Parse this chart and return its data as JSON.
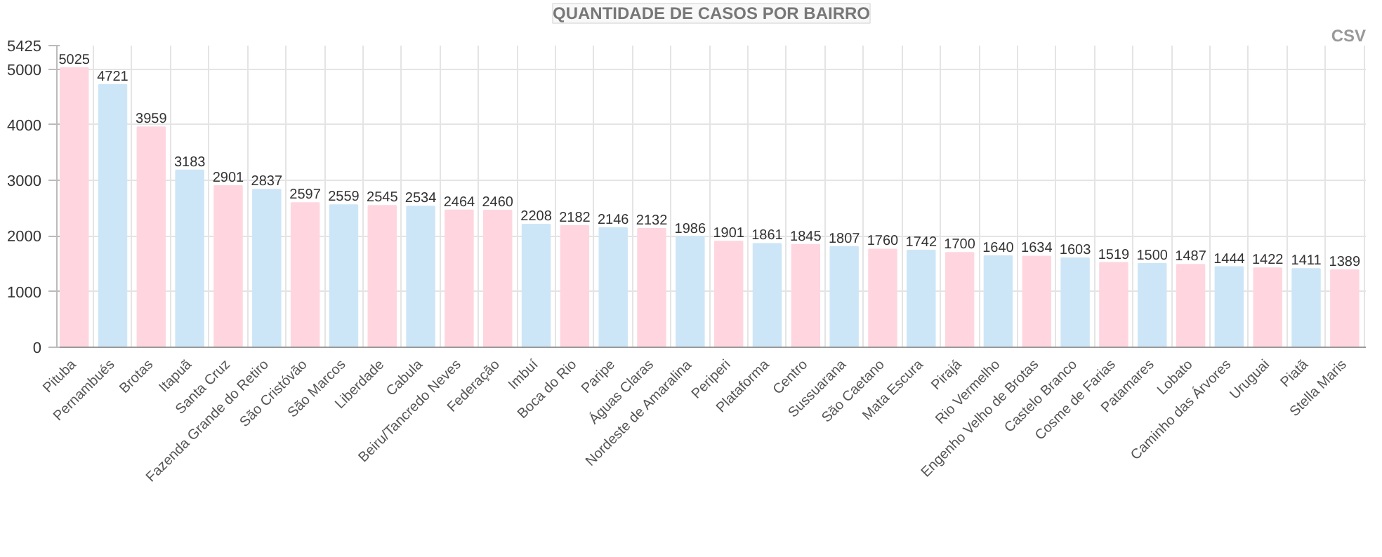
{
  "chart_data": {
    "type": "bar",
    "title": "QUANTIDADE DE CASOS POR BAIRRO",
    "categories": [
      "Pituba",
      "Pernambués",
      "Brotas",
      "Itapuã",
      "Santa Cruz",
      "Fazenda Grande do Retiro",
      "São Cristóvão",
      "São Marcos",
      "Liberdade",
      "Cabula",
      "Beiru/Tancredo Neves",
      "Federação",
      "Imbuí",
      "Boca do Rio",
      "Paripe",
      "Águas Claras",
      "Nordeste de Amaralina",
      "Periperi",
      "Plataforma",
      "Centro",
      "Sussuarana",
      "São Caetano",
      "Mata Escura",
      "Pirajá",
      "Rio Vermelho",
      "Engenho Velho de Brotas",
      "Castelo Branco",
      "Cosme de Farias",
      "Patamares",
      "Lobato",
      "Caminho das Árvores",
      "Uruguai",
      "Piatã",
      "Stella Maris"
    ],
    "values": [
      5025,
      4721,
      3959,
      3183,
      2901,
      2837,
      2597,
      2559,
      2545,
      2534,
      2464,
      2460,
      2208,
      2182,
      2146,
      2132,
      1986,
      1901,
      1861,
      1845,
      1807,
      1760,
      1742,
      1700,
      1640,
      1634,
      1603,
      1519,
      1500,
      1487,
      1444,
      1422,
      1411,
      1389
    ],
    "value_labels": [
      "5025",
      "4721",
      "3959",
      "3183",
      "2901",
      "2837",
      "2597",
      "2559",
      "2545",
      "2534",
      "2464",
      "2460",
      "2208",
      "2182",
      "2146",
      "2132",
      "1986",
      "1901",
      "1861",
      "1845",
      "1807",
      "1760",
      "1742",
      "1700",
      "1640",
      "1634",
      "1603",
      "1519",
      "1500",
      "1487",
      "1444",
      "1422",
      "1411",
      "1389"
    ],
    "colors": [
      "#ffd6df",
      "#cde6f7",
      "#ffd6df",
      "#cde6f7",
      "#ffd6df",
      "#cde6f7",
      "#ffd6df",
      "#cde6f7",
      "#ffd6df",
      "#cde6f7",
      "#ffd6df",
      "#ffd6df",
      "#cde6f7",
      "#ffd6df",
      "#cde6f7",
      "#ffd6df",
      "#cde6f7",
      "#ffd6df",
      "#cde6f7",
      "#ffd6df",
      "#cde6f7",
      "#ffd6df",
      "#cde6f7",
      "#ffd6df",
      "#cde6f7",
      "#ffd6df",
      "#cde6f7",
      "#ffd6df",
      "#cde6f7",
      "#ffd6df",
      "#cde6f7",
      "#ffd6df",
      "#cde6f7",
      "#ffd6df"
    ],
    "ylim": [
      0,
      5425
    ],
    "yticks": [
      0,
      1000,
      2000,
      3000,
      4000,
      5000,
      5425
    ],
    "grid": true,
    "annotations": [
      "CSV"
    ]
  }
}
